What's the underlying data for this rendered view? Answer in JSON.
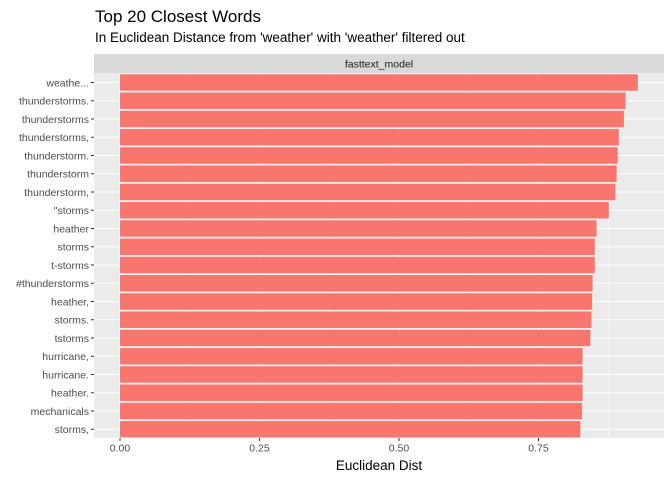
{
  "chart_data": {
    "type": "bar",
    "orientation": "horizontal",
    "title": "Top 20 Closest Words",
    "subtitle": "In Euclidean Distance from 'weather' with 'weather' filtered out",
    "facet_label": "fasttext_model",
    "xlabel": "Euclidean Dist",
    "ylabel": "",
    "xlim": [
      0,
      0.98
    ],
    "x_ticks": [
      0.0,
      0.25,
      0.5,
      0.75
    ],
    "x_tick_labels": [
      "0.00",
      "0.25",
      "0.50",
      "0.75"
    ],
    "grid": true,
    "bar_color": "#F8766D",
    "panel_color": "#EBEBEB",
    "strip_color": "#D9D9D9",
    "categories": [
      "weathe...",
      "thunderstorms.",
      "thunderstorms",
      "thunderstorms,",
      "thunderstorm.",
      "thunderstorm",
      "thunderstorm,",
      "\"storms",
      "heather",
      "storms",
      "t-storms",
      "#thunderstorms",
      "heather,",
      "storms.",
      "tstorms",
      "hurricane,",
      "hurricane.",
      "heather.",
      "mechanicals",
      "storms,"
    ],
    "values": [
      0.928,
      0.906,
      0.903,
      0.894,
      0.892,
      0.89,
      0.888,
      0.876,
      0.854,
      0.851,
      0.851,
      0.847,
      0.846,
      0.845,
      0.843,
      0.829,
      0.829,
      0.829,
      0.828,
      0.825
    ]
  }
}
